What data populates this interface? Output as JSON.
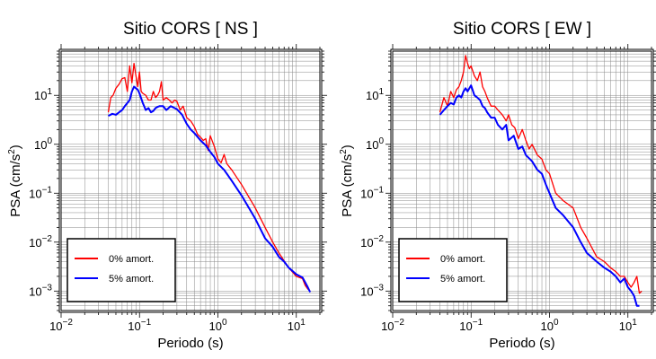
{
  "chart_data": [
    {
      "type": "line",
      "title": "Sitio CORS [ NS ]",
      "xlabel": "Periodo (s)",
      "ylabel_main": "PSA (cm/s",
      "ylabel_sup": "2",
      "ylabel_end": ")",
      "xscale": "log",
      "yscale": "log",
      "xlim": [
        0.01,
        20
      ],
      "ylim": [
        0.0004,
        80
      ],
      "grid": true,
      "legend_position": "bottom-left",
      "x_ticks": [
        {
          "base": "10",
          "exp": "−2"
        },
        {
          "base": "10",
          "exp": "−1"
        },
        {
          "base": "10",
          "exp": "0"
        },
        {
          "base": "10",
          "exp": "1"
        }
      ],
      "y_ticks": [
        {
          "base": "10",
          "exp": "1"
        },
        {
          "base": "10",
          "exp": "0"
        },
        {
          "base": "10",
          "exp": "−1"
        },
        {
          "base": "10",
          "exp": "−2"
        },
        {
          "base": "10",
          "exp": "−3"
        }
      ],
      "series": [
        {
          "name": "0% amort.",
          "color": "#ff0000",
          "x": [
            0.04,
            0.043,
            0.046,
            0.05,
            0.055,
            0.06,
            0.065,
            0.07,
            0.075,
            0.08,
            0.085,
            0.09,
            0.095,
            0.1,
            0.105,
            0.11,
            0.12,
            0.13,
            0.14,
            0.15,
            0.16,
            0.17,
            0.18,
            0.19,
            0.2,
            0.22,
            0.24,
            0.26,
            0.28,
            0.3,
            0.33,
            0.36,
            0.4,
            0.45,
            0.5,
            0.55,
            0.6,
            0.65,
            0.7,
            0.75,
            0.8,
            0.9,
            1.0,
            1.1,
            1.2,
            1.3,
            1.5,
            2,
            3,
            4,
            5,
            6,
            8,
            10,
            12,
            13,
            14,
            15
          ],
          "y": [
            4.5,
            9,
            10,
            14,
            17,
            22,
            23,
            12,
            40,
            18,
            45,
            25,
            15,
            30,
            12,
            11,
            10,
            8,
            8,
            12,
            9,
            10,
            12,
            19,
            8,
            9,
            8,
            7,
            8,
            7.5,
            5,
            6,
            3.5,
            3,
            2.3,
            1.6,
            1.4,
            1.2,
            1.3,
            0.75,
            1.5,
            0.9,
            0.5,
            0.42,
            0.62,
            0.4,
            0.3,
            0.15,
            0.05,
            0.02,
            0.01,
            0.006,
            0.003,
            0.002,
            0.0018,
            0.0013,
            0.0011,
            0.001
          ]
        },
        {
          "name": "5% amort.",
          "color": "#0000ff",
          "x": [
            0.04,
            0.045,
            0.05,
            0.055,
            0.06,
            0.065,
            0.07,
            0.075,
            0.08,
            0.085,
            0.09,
            0.095,
            0.1,
            0.11,
            0.12,
            0.13,
            0.14,
            0.15,
            0.16,
            0.17,
            0.18,
            0.2,
            0.22,
            0.25,
            0.28,
            0.3,
            0.35,
            0.4,
            0.45,
            0.5,
            0.6,
            0.7,
            0.8,
            0.9,
            1.0,
            1.2,
            1.5,
            2,
            3,
            4,
            5,
            6,
            7,
            8,
            10,
            12,
            13,
            14,
            15
          ],
          "y": [
            3.8,
            4.2,
            4.0,
            4.5,
            5.0,
            6.0,
            7.0,
            8.0,
            12,
            15,
            14,
            13,
            11,
            7.0,
            5.0,
            5.5,
            4.5,
            4.8,
            5.5,
            5.8,
            6.0,
            6.0,
            5.0,
            6.0,
            5.5,
            5.2,
            4.0,
            2.6,
            2.0,
            1.7,
            1.2,
            0.95,
            0.7,
            0.55,
            0.4,
            0.3,
            0.18,
            0.09,
            0.03,
            0.012,
            0.008,
            0.005,
            0.004,
            0.003,
            0.0022,
            0.0019,
            0.0015,
            0.0012,
            0.00095
          ]
        }
      ]
    },
    {
      "type": "line",
      "title": "Sitio CORS [ EW ]",
      "xlabel": "Periodo (s)",
      "ylabel_main": "PSA (cm/s",
      "ylabel_sup": "2",
      "ylabel_end": ")",
      "xscale": "log",
      "yscale": "log",
      "xlim": [
        0.01,
        20
      ],
      "ylim": [
        0.0004,
        80
      ],
      "grid": true,
      "legend_position": "bottom-left",
      "x_ticks": [
        {
          "base": "10",
          "exp": "−2"
        },
        {
          "base": "10",
          "exp": "−1"
        },
        {
          "base": "10",
          "exp": "0"
        },
        {
          "base": "10",
          "exp": "1"
        }
      ],
      "y_ticks": [
        {
          "base": "10",
          "exp": "1"
        },
        {
          "base": "10",
          "exp": "0"
        },
        {
          "base": "10",
          "exp": "−1"
        },
        {
          "base": "10",
          "exp": "−2"
        },
        {
          "base": "10",
          "exp": "−3"
        }
      ],
      "series": [
        {
          "name": "0% amort.",
          "color": "#ff0000",
          "x": [
            0.04,
            0.045,
            0.05,
            0.055,
            0.06,
            0.065,
            0.07,
            0.075,
            0.08,
            0.085,
            0.09,
            0.095,
            0.1,
            0.11,
            0.12,
            0.13,
            0.14,
            0.15,
            0.16,
            0.18,
            0.2,
            0.22,
            0.25,
            0.28,
            0.3,
            0.33,
            0.36,
            0.4,
            0.45,
            0.5,
            0.55,
            0.6,
            0.7,
            0.8,
            0.9,
            1.0,
            1.2,
            1.5,
            2,
            2.5,
            3,
            4,
            5,
            6,
            7,
            8,
            9,
            10,
            11,
            12,
            13,
            14,
            15
          ],
          "y": [
            4.5,
            9,
            6,
            12,
            9,
            13,
            15,
            20,
            30,
            65,
            45,
            35,
            40,
            25,
            20,
            30,
            15,
            12,
            9,
            6,
            6,
            5,
            4,
            3,
            4,
            2.5,
            2.2,
            1.3,
            2,
            1.2,
            0.8,
            1.0,
            0.6,
            0.5,
            0.3,
            0.25,
            0.1,
            0.07,
            0.05,
            0.02,
            0.012,
            0.005,
            0.004,
            0.003,
            0.0025,
            0.002,
            0.002,
            0.0015,
            0.0012,
            0.0015,
            0.002,
            0.0009,
            0.001
          ]
        },
        {
          "name": "5% amort.",
          "color": "#0000ff",
          "x": [
            0.04,
            0.045,
            0.05,
            0.055,
            0.06,
            0.065,
            0.07,
            0.075,
            0.08,
            0.085,
            0.09,
            0.1,
            0.11,
            0.12,
            0.13,
            0.14,
            0.15,
            0.16,
            0.18,
            0.2,
            0.22,
            0.25,
            0.28,
            0.3,
            0.35,
            0.4,
            0.45,
            0.5,
            0.6,
            0.7,
            0.8,
            0.9,
            1.0,
            1.2,
            1.5,
            2,
            2.5,
            3,
            4,
            5,
            6,
            7,
            8,
            9,
            10,
            11,
            12,
            13,
            14
          ],
          "y": [
            4.0,
            5.0,
            6.0,
            7.0,
            6.5,
            9.0,
            10,
            9.0,
            12,
            14,
            12,
            16,
            10,
            9.0,
            8.0,
            6.0,
            5.5,
            4.5,
            3.5,
            3.5,
            2.5,
            2.0,
            2.5,
            1.2,
            1.5,
            0.8,
            0.9,
            0.6,
            0.45,
            0.3,
            0.25,
            0.15,
            0.1,
            0.05,
            0.035,
            0.02,
            0.01,
            0.006,
            0.004,
            0.003,
            0.0025,
            0.002,
            0.0015,
            0.0018,
            0.0012,
            0.001,
            0.0008,
            0.0005,
            0.0005
          ]
        }
      ]
    }
  ]
}
